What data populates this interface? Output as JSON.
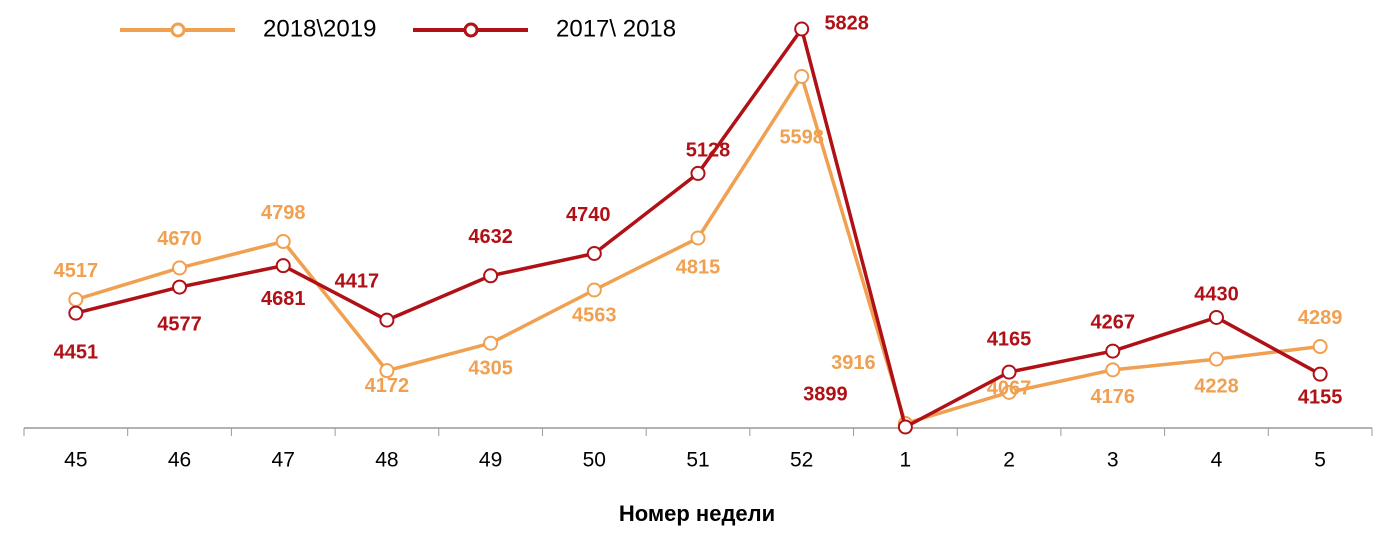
{
  "chart_data": {
    "type": "line",
    "x_label": "Номер недели",
    "categories": [
      "45",
      "46",
      "47",
      "48",
      "49",
      "50",
      "51",
      "52",
      "1",
      "2",
      "3",
      "4",
      "5"
    ],
    "series": [
      {
        "name": "2018\\2019",
        "color": "#f0a050",
        "values": [
          4517,
          4670,
          4798,
          4172,
          4305,
          4563,
          4815,
          5598,
          3916,
          4067,
          4176,
          4228,
          4289
        ]
      },
      {
        "name": "2017\\ 2018",
        "color": "#b01117",
        "values": [
          4451,
          4577,
          4681,
          4417,
          4632,
          4740,
          5128,
          5828,
          3899,
          4165,
          4267,
          4430,
          4155
        ]
      }
    ]
  }
}
